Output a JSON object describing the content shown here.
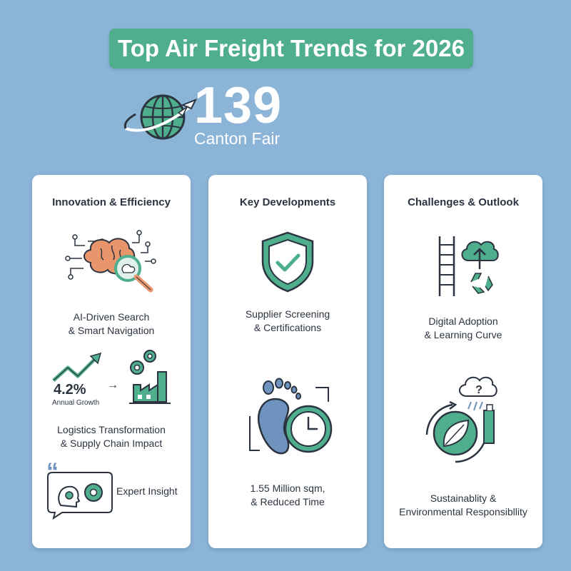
{
  "header": {
    "title": "Top Air Freight Trends for 2026",
    "number": "139",
    "subtitle": "Canton Fair"
  },
  "columns": [
    {
      "title": "Innovation & Efficiency",
      "items": [
        {
          "icon": "ai-brain-search-icon",
          "caption_lines": [
            "AI-Driven Search",
            "& Smart Navigation"
          ]
        },
        {
          "icon": "growth-factory-icon",
          "stat_value": "4.2%",
          "stat_label": "Annual Growth",
          "caption_lines": [
            "Logistics Transformation",
            "& Supply Chain Impact"
          ]
        },
        {
          "icon": "expert-insight-icon",
          "quote_mark": "“",
          "caption": "Expert Insight"
        }
      ]
    },
    {
      "title": "Key Developments",
      "items": [
        {
          "icon": "shield-check-icon",
          "caption_lines": [
            "Supplier Screening",
            "& Certifications"
          ]
        },
        {
          "icon": "footprint-clock-icon",
          "caption_lines": [
            "1.55 Million sqm,",
            "& Reduced Time"
          ]
        }
      ]
    },
    {
      "title": "Challenges & Outlook",
      "items": [
        {
          "icon": "ladder-cloud-recycle-icon",
          "caption_lines": [
            "Digital Adoption",
            "& Learning Curve"
          ]
        },
        {
          "icon": "cloud-leaf-cycle-icon",
          "caption_lines": [
            "Sustainablity &",
            "Environmental Responsibllity"
          ]
        }
      ]
    }
  ],
  "colors": {
    "background": "#8bb4d7",
    "accent_green": "#4fae8c",
    "card": "#ffffff",
    "dark_text": "#2b3440",
    "brain_orange": "#e8956b",
    "foot_blue": "#6f93bf"
  }
}
